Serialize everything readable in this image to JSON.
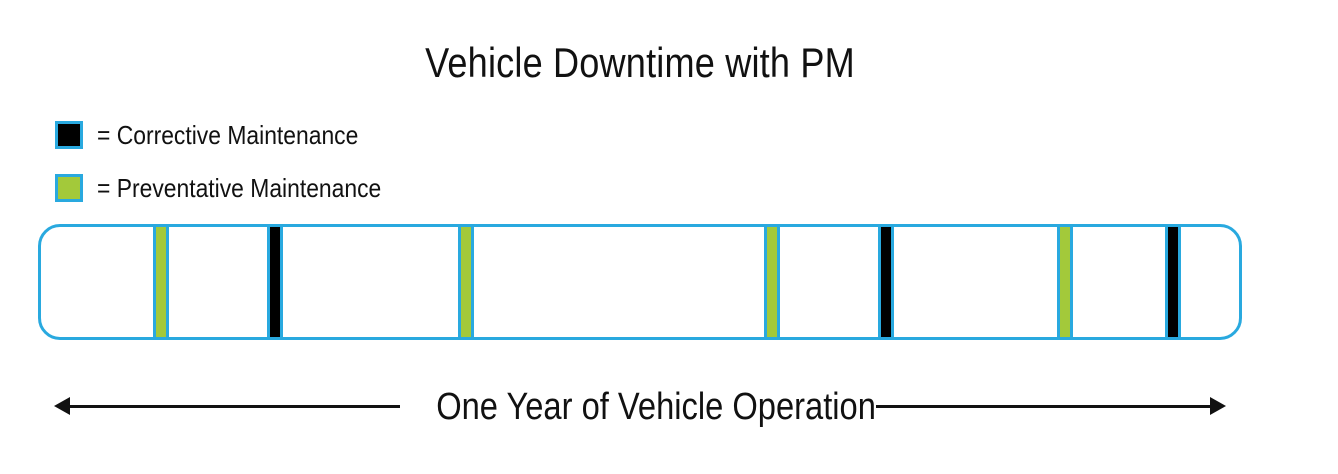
{
  "title": "Vehicle Downtime with PM",
  "legend": [
    {
      "label": "= Corrective Maintenance",
      "color": "#000000",
      "type": "corrective"
    },
    {
      "label": "= Preventative Maintenance",
      "color": "#a3c93a",
      "type": "preventative"
    }
  ],
  "timeline": {
    "border_color": "#29a9df",
    "events": [
      {
        "type": "preventative",
        "position": 0.1
      },
      {
        "type": "corrective",
        "position": 0.195
      },
      {
        "type": "preventative",
        "position": 0.355
      },
      {
        "type": "preventative",
        "position": 0.61
      },
      {
        "type": "corrective",
        "position": 0.705
      },
      {
        "type": "preventative",
        "position": 0.855
      },
      {
        "type": "corrective",
        "position": 0.945
      }
    ]
  },
  "axis": {
    "label": "One Year of Vehicle Operation"
  }
}
